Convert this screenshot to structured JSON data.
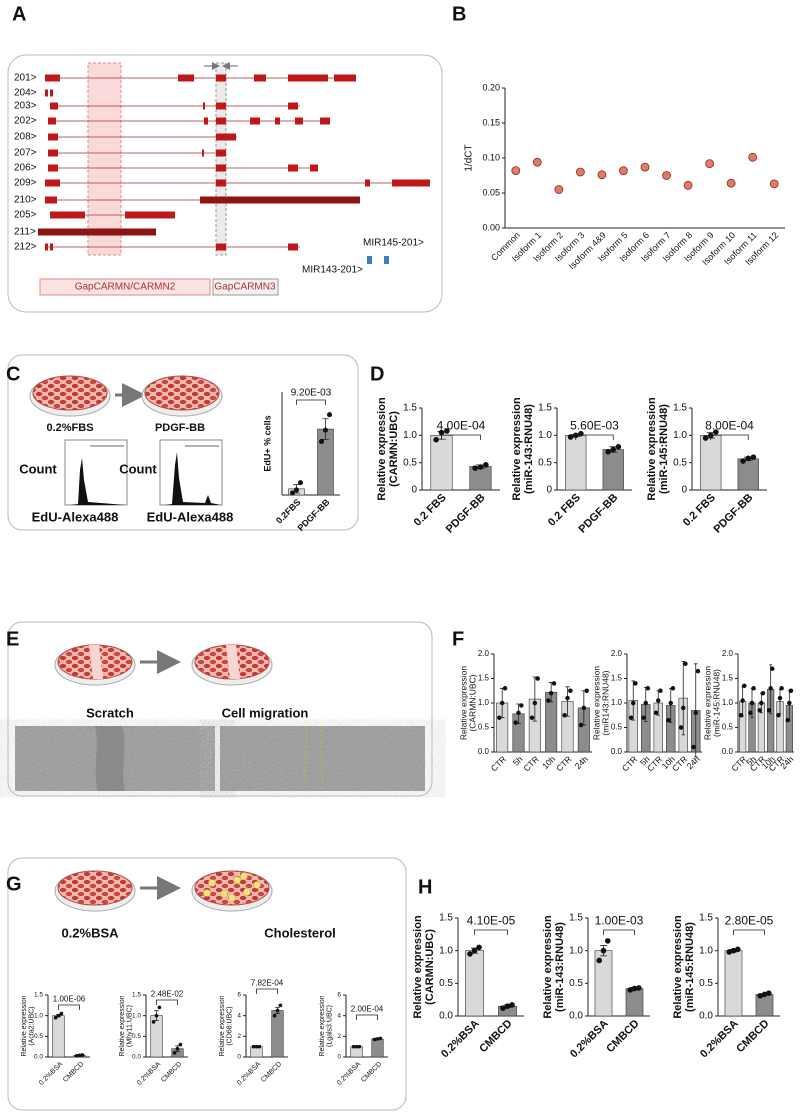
{
  "panel_labels": [
    "A",
    "B",
    "C",
    "D",
    "E",
    "F",
    "G",
    "H"
  ],
  "panel_a": {
    "transcripts": [
      "201>",
      "204>",
      "203>",
      "202>",
      "208>",
      "207>",
      "206>",
      "209>",
      "210>",
      "205>",
      "211>",
      "212>"
    ],
    "regions": [
      "GapCARMN/CARMN2",
      "GapCARMN3"
    ],
    "mirnas": [
      "MIR145-201>",
      "MIR143-201>"
    ]
  },
  "panel_c": {
    "conditions": [
      "0.2%FBS",
      "PDGF-BB"
    ],
    "flow_ylabel": "Count",
    "flow_xlabel": "EdU-Alexa488"
  },
  "panel_e": {
    "labels": [
      "Scratch",
      "Cell migration"
    ]
  },
  "panel_g": {
    "labels": [
      "0.2%BSA",
      "Cholesterol"
    ]
  },
  "chart_data": [
    {
      "type": "dot",
      "ylabel": [
        "1/dCT"
      ],
      "color": "#e07b6a",
      "categories": [
        "Common",
        "Isoform 1",
        "Isoform 2",
        "Isoform 3",
        "Isoform 4&9",
        "Isoform 5",
        "Isoform 6",
        "Isoform 7",
        "Isoform 8",
        "Isoform 9",
        "Isoform 10",
        "Isoform 11",
        "Isoform 12"
      ],
      "values": [
        0.082,
        0.094,
        0.055,
        0.08,
        0.076,
        0.082,
        0.087,
        0.075,
        0.061,
        0.092,
        0.064,
        0.101,
        0.063
      ],
      "ylim": [
        0,
        0.2
      ],
      "yticks": [
        {
          "value": 0,
          "label": "0.00"
        },
        {
          "value": 0.05,
          "label": "0.05"
        },
        {
          "value": 0.1,
          "label": "0.10"
        },
        {
          "value": 0.15,
          "label": "0.15"
        },
        {
          "value": 0.2,
          "label": "0.20"
        }
      ]
    },
    {
      "type": "bar",
      "ylabel": [
        "EdU+ % cells"
      ],
      "categories": [
        "0.2FBS",
        "PDGF-BB"
      ],
      "colors": [
        "#d9d9d9",
        "#8c8c8c"
      ],
      "values": [
        0.6,
        6.4
      ],
      "errors": [
        0.4,
        1.0
      ],
      "points": [
        [
          0.2,
          0.5,
          1.2
        ],
        [
          5.2,
          6.3,
          7.8
        ]
      ],
      "ylim": [
        0,
        10
      ],
      "yticks": [],
      "annotation": "9.20E-03"
    },
    {
      "type": "bar",
      "ylabel": [
        "Relative expression",
        "(CARMN:UBC)"
      ],
      "categories": [
        "0.2 FBS",
        "PDGF-BB"
      ],
      "colors": [
        "#d9d9d9",
        "#8c8c8c"
      ],
      "values": [
        1.0,
        0.43
      ],
      "errors": [
        0.07,
        0.03
      ],
      "points": [
        [
          0.92,
          1.05,
          1.08
        ],
        [
          0.4,
          0.42,
          0.46
        ]
      ],
      "ylim": [
        0,
        1.5
      ],
      "yticks": [
        {
          "value": 0,
          "label": "0"
        },
        0.5,
        {
          "value": 1,
          "label": "1.0"
        },
        1.5
      ],
      "annotation": "4.00E-04"
    },
    {
      "type": "bar",
      "ylabel": [
        "Relative expression",
        "(miR-143:RNU48)"
      ],
      "categories": [
        "0.2 FBS",
        "PDGF-BB"
      ],
      "colors": [
        "#d9d9d9",
        "#8c8c8c"
      ],
      "values": [
        1.0,
        0.74
      ],
      "errors": [
        0.02,
        0.05
      ],
      "points": [
        [
          0.97,
          1.0,
          1.03
        ],
        [
          0.7,
          0.74,
          0.79
        ]
      ],
      "ylim": [
        0,
        1.5
      ],
      "yticks": [
        {
          "value": 0,
          "label": "0"
        },
        0.5,
        {
          "value": 1,
          "label": "1.0"
        },
        1.5
      ],
      "annotation": "5.60E-03"
    },
    {
      "type": "bar",
      "ylabel": [
        "Relative expression",
        "(miR-145:RNU48)"
      ],
      "categories": [
        "0.2 FBS",
        "PDGF-BB"
      ],
      "colors": [
        "#d9d9d9",
        "#8c8c8c"
      ],
      "values": [
        1.0,
        0.57
      ],
      "errors": [
        0.05,
        0.03
      ],
      "points": [
        [
          0.95,
          1.0,
          1.06
        ],
        [
          0.53,
          0.58,
          0.6
        ]
      ],
      "ylim": [
        0,
        1.5
      ],
      "yticks": [
        {
          "value": 0,
          "label": "0"
        },
        0.5,
        {
          "value": 1,
          "label": "1.0"
        },
        1.5
      ],
      "annotation": "8.00E-04"
    },
    {
      "type": "bar",
      "ylabel": [
        "Relative expression",
        "(CARMN:UBC)"
      ],
      "categories": [
        "CTR",
        "5h",
        "CTR",
        "10h",
        "CTR",
        "24h"
      ],
      "colors": [
        "#d9d9d9",
        "#8c8c8c",
        "#d9d9d9",
        "#8c8c8c",
        "#d9d9d9",
        "#8c8c8c"
      ],
      "values": [
        1.0,
        0.78,
        1.08,
        1.22,
        1.03,
        0.9
      ],
      "errors": [
        0.3,
        0.2,
        0.45,
        0.2,
        0.3,
        0.35
      ],
      "points": [
        [
          0.7,
          1.0,
          1.3
        ],
        [
          0.6,
          0.8,
          0.95
        ],
        [
          0.7,
          1.0,
          1.5
        ],
        [
          1.05,
          1.2,
          1.4
        ],
        [
          0.75,
          1.1,
          1.25
        ],
        [
          0.55,
          0.9,
          1.25
        ]
      ],
      "ylim": [
        0,
        2
      ],
      "yticks": [
        {
          "value": 0,
          "label": "0.0"
        },
        0.5,
        {
          "value": 1,
          "label": "1.0"
        },
        1.5,
        {
          "value": 2,
          "label": "2.0"
        }
      ]
    },
    {
      "type": "bar",
      "ylabel": [
        "Relative expression",
        "(miR143:RNU48)"
      ],
      "categories": [
        "CTR",
        "5h",
        "CTR",
        "10h",
        "CTR",
        "24h"
      ],
      "colors": [
        "#d9d9d9",
        "#8c8c8c",
        "#d9d9d9",
        "#8c8c8c",
        "#d9d9d9",
        "#8c8c8c"
      ],
      "values": [
        1.05,
        0.97,
        1.0,
        0.95,
        1.1,
        0.85
      ],
      "errors": [
        0.4,
        0.35,
        0.25,
        0.35,
        0.75,
        0.95
      ],
      "points": [
        [
          0.7,
          1.0,
          1.4
        ],
        [
          0.7,
          1.0,
          1.3
        ],
        [
          0.8,
          1.05,
          1.25
        ],
        [
          0.65,
          1.0,
          1.3
        ],
        [
          0.5,
          0.9,
          1.8
        ],
        [
          0.1,
          0.8,
          1.65
        ]
      ],
      "ylim": [
        0,
        2
      ],
      "yticks": [
        {
          "value": 0,
          "label": "0.0"
        },
        0.5,
        {
          "value": 1,
          "label": "1.0"
        },
        1.5,
        {
          "value": 2,
          "label": "2.0"
        }
      ]
    },
    {
      "type": "bar",
      "ylabel": [
        "Relative expression",
        "(miR-145:RNU48)"
      ],
      "categories": [
        "CTR",
        "5h",
        "CTR",
        "10h",
        "CTR",
        "24h"
      ],
      "colors": [
        "#d9d9d9",
        "#8c8c8c",
        "#d9d9d9",
        "#8c8c8c",
        "#d9d9d9",
        "#8c8c8c"
      ],
      "values": [
        1.03,
        1.0,
        1.0,
        1.28,
        1.03,
        0.95
      ],
      "errors": [
        0.3,
        0.3,
        0.2,
        0.5,
        0.25,
        0.3
      ],
      "points": [
        [
          0.75,
          1.05,
          1.35
        ],
        [
          0.8,
          1.0,
          1.3
        ],
        [
          0.85,
          1.0,
          1.2
        ],
        [
          0.85,
          1.3,
          1.7
        ],
        [
          0.75,
          1.1,
          1.3
        ],
        [
          0.65,
          1.0,
          1.25
        ]
      ],
      "ylim": [
        0,
        2
      ],
      "yticks": [
        {
          "value": 0,
          "label": "0.0"
        },
        0.5,
        {
          "value": 1,
          "label": "1.0"
        },
        1.5,
        {
          "value": 2,
          "label": "2.0"
        }
      ]
    },
    {
      "type": "bar",
      "ylabel": [
        "Relative expression",
        "(Acta2:UBC)"
      ],
      "categories": [
        "0.2%BSA",
        "CMBCD"
      ],
      "colors": [
        "#d9d9d9",
        "#8c8c8c"
      ],
      "values": [
        1.0,
        0.04
      ],
      "errors": [
        0.03,
        0.01
      ],
      "points": [
        [
          0.95,
          1.0,
          1.05
        ],
        [
          0.03,
          0.04,
          0.05
        ]
      ],
      "ylim": [
        0,
        1.5
      ],
      "yticks": [
        {
          "value": 0,
          "label": "0.0"
        },
        0.5,
        {
          "value": 1,
          "label": "1.0"
        },
        1.5
      ],
      "annotation": "1.00E-06"
    },
    {
      "type": "bar",
      "ylabel": [
        "Relative expression",
        "(Mhy11:UBC)"
      ],
      "categories": [
        "0.2%BSA",
        "CMBCD"
      ],
      "colors": [
        "#d9d9d9",
        "#8c8c8c"
      ],
      "values": [
        1.0,
        0.2
      ],
      "errors": [
        0.12,
        0.07
      ],
      "points": [
        [
          0.85,
          1.0,
          1.2
        ],
        [
          0.1,
          0.2,
          0.3
        ]
      ],
      "ylim": [
        0,
        1.5
      ],
      "yticks": [
        {
          "value": 0,
          "label": "0.0"
        },
        0.5,
        {
          "value": 1,
          "label": "1.0"
        },
        1.5
      ],
      "annotation": "2.48E-02"
    },
    {
      "type": "bar",
      "ylabel": [
        "Relative expression",
        "(CD68:UBC)"
      ],
      "categories": [
        "0.2%BSA",
        "CMBCD"
      ],
      "colors": [
        "#d9d9d9",
        "#8c8c8c"
      ],
      "values": [
        1.0,
        4.5
      ],
      "errors": [
        0.02,
        0.3
      ],
      "points": [
        [
          1.0,
          1.0,
          1.0
        ],
        [
          4.0,
          4.5,
          5.0
        ]
      ],
      "ylim": [
        0,
        6
      ],
      "yticks": [
        0,
        2,
        4,
        6
      ],
      "annotation": "7.82E-04"
    },
    {
      "type": "bar",
      "ylabel": [
        "Relative expression",
        "(Lgals3:UBC)"
      ],
      "categories": [
        "0.2%BSA",
        "CMBCD"
      ],
      "colors": [
        "#d9d9d9",
        "#8c8c8c"
      ],
      "values": [
        1.0,
        1.75
      ],
      "errors": [
        0.02,
        0.03
      ],
      "points": [
        [
          1.0,
          1.0,
          1.0
        ],
        [
          1.7,
          1.75,
          1.8
        ]
      ],
      "ylim": [
        0,
        6
      ],
      "yticks": [
        0,
        2,
        4,
        6
      ],
      "annotation": "2.00E-04"
    },
    {
      "type": "bar",
      "ylabel": [
        "Relative expression",
        "(CARMN:UBC)"
      ],
      "categories": [
        "0.2%BSA",
        "CMBCD"
      ],
      "colors": [
        "#d9d9d9",
        "#8c8c8c"
      ],
      "values": [
        1.0,
        0.15
      ],
      "errors": [
        0.04,
        0.02
      ],
      "points": [
        [
          0.95,
          1.0,
          1.05
        ],
        [
          0.12,
          0.15,
          0.17
        ]
      ],
      "ylim": [
        0,
        1.5
      ],
      "yticks": [
        {
          "value": 0,
          "label": "0.0"
        },
        0.5,
        {
          "value": 1,
          "label": "1.0"
        },
        1.5
      ],
      "annotation": "4.10E-05"
    },
    {
      "type": "bar",
      "ylabel": [
        "Relative expression",
        "(miR-143:RNU48)"
      ],
      "categories": [
        "0.2%BSA",
        "CMBCD"
      ],
      "colors": [
        "#d9d9d9",
        "#8c8c8c"
      ],
      "values": [
        1.0,
        0.42
      ],
      "errors": [
        0.08,
        0.02
      ],
      "points": [
        [
          0.85,
          1.0,
          1.15
        ],
        [
          0.4,
          0.42,
          0.43
        ]
      ],
      "ylim": [
        0,
        1.5
      ],
      "yticks": [
        {
          "value": 0,
          "label": "0.0"
        },
        0.5,
        {
          "value": 1,
          "label": "1.0"
        },
        1.5
      ],
      "annotation": "1.00E-03"
    },
    {
      "type": "bar",
      "ylabel": [
        "Relative expression",
        "(miR-145:RNU48)"
      ],
      "categories": [
        "0.2%BSA",
        "CMBCD"
      ],
      "colors": [
        "#d9d9d9",
        "#8c8c8c"
      ],
      "values": [
        1.0,
        0.33
      ],
      "errors": [
        0.02,
        0.01
      ],
      "points": [
        [
          0.98,
          1.0,
          1.02
        ],
        [
          0.31,
          0.33,
          0.35
        ]
      ],
      "ylim": [
        0,
        1.5
      ],
      "yticks": [
        {
          "value": 0,
          "label": "0.0"
        },
        0.5,
        {
          "value": 1,
          "label": "1.0"
        },
        1.5
      ],
      "annotation": "2.80E-05"
    }
  ]
}
